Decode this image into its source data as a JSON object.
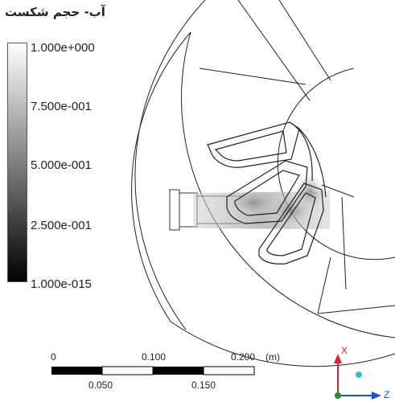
{
  "title": "آب- حجم شکست",
  "legend": {
    "labels": [
      "1.000e+000",
      "7.500e-001",
      "5.000e-001",
      "2.500e-001",
      "1.000e-015"
    ],
    "gradient": [
      "#ffffff",
      "#000000"
    ]
  },
  "scale_bar": {
    "top_ticks": [
      "0",
      "0.100",
      "0.200"
    ],
    "bottom_ticks": [
      "0.050",
      "0.150"
    ],
    "unit": "(m)"
  },
  "triad": {
    "x_label": "X",
    "z_label": "Z",
    "x_color": "#e0202a",
    "z_color": "#1f4fd6",
    "y_color": "#2a8a2a",
    "dot_color": "#28c8d8"
  }
}
